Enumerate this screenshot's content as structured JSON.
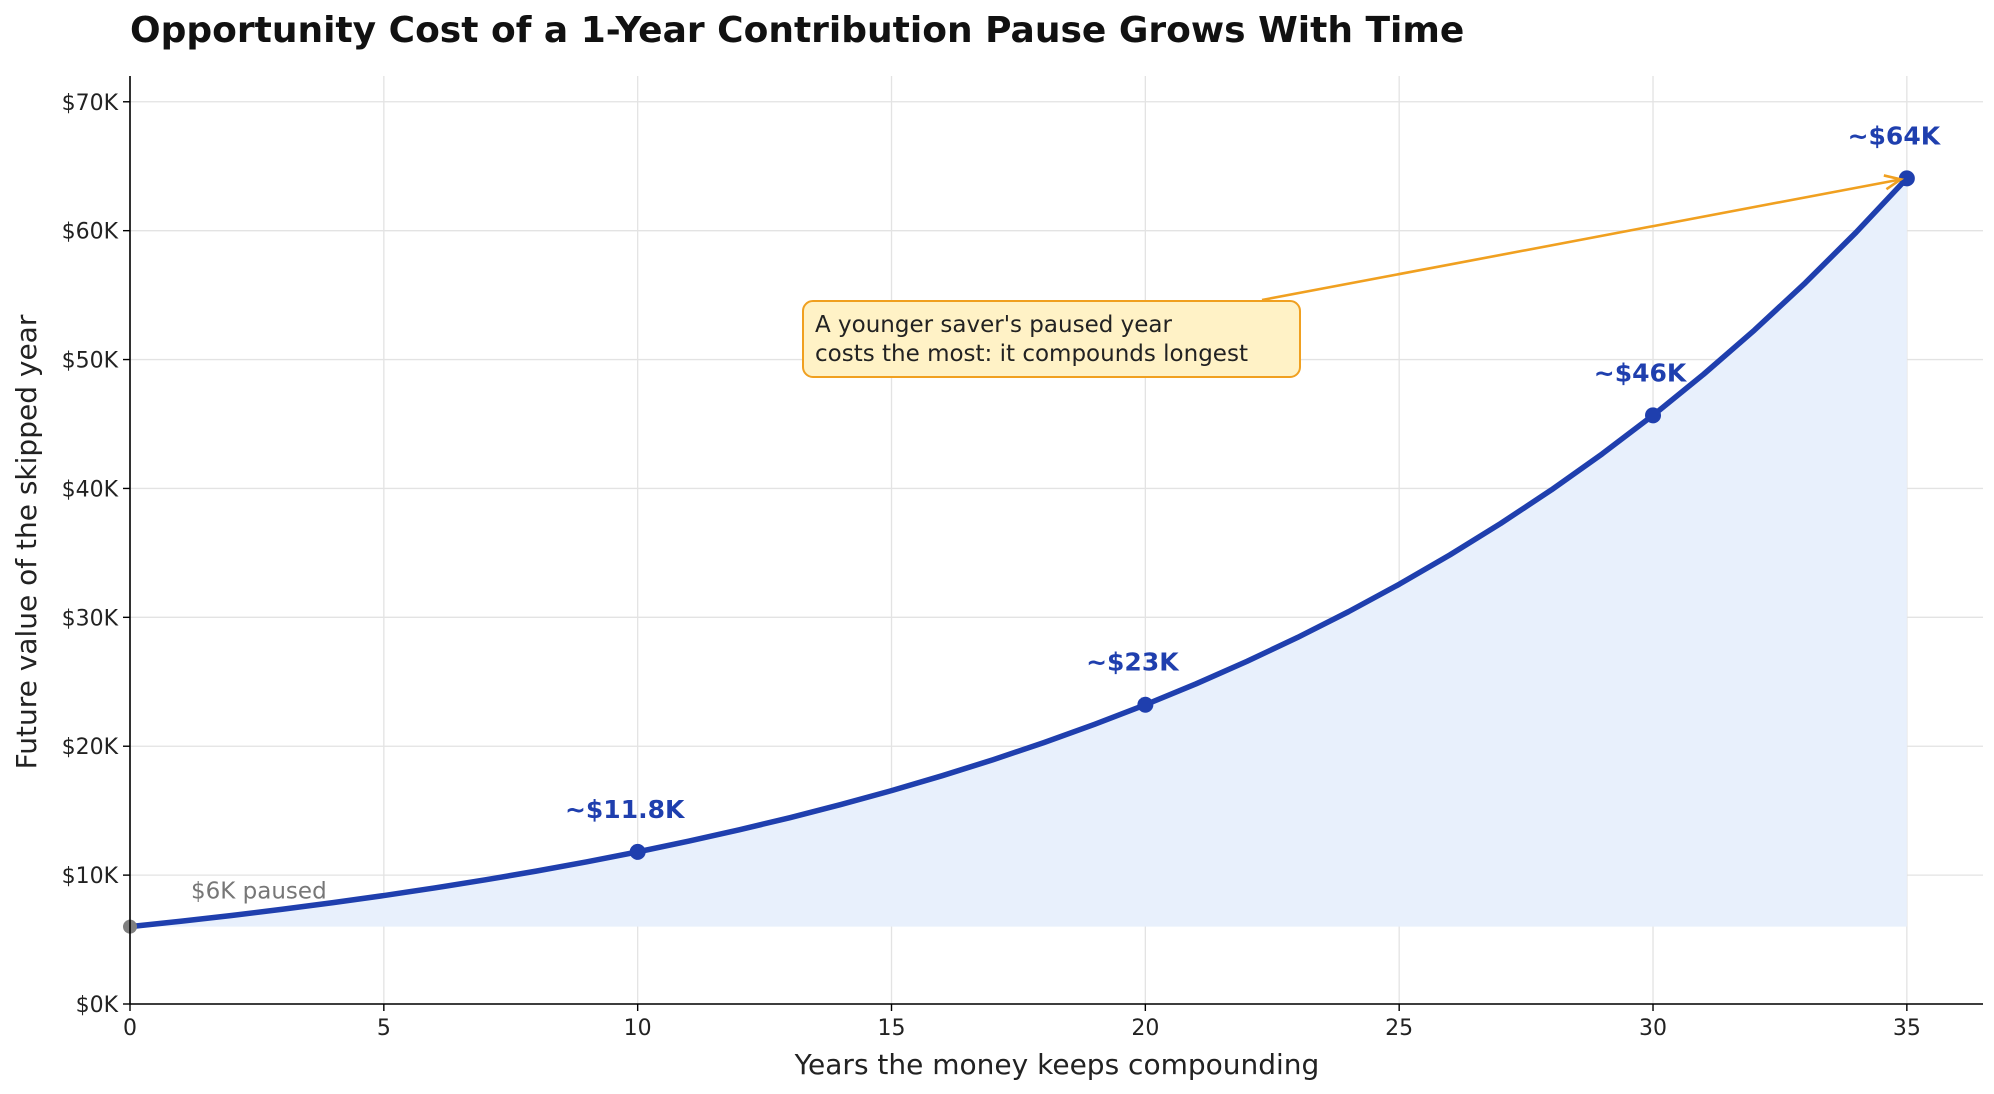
{
  "chart_data": {
    "type": "area",
    "title": "Opportunity Cost of a 1-Year Contribution Pause Grows With Time",
    "xlabel": "Years the money keeps compounding",
    "ylabel": "Future value of the skipped year",
    "xlim": [
      0,
      36.5
    ],
    "ylim": [
      0,
      72000
    ],
    "x_ticks": [
      0,
      5,
      10,
      15,
      20,
      25,
      30,
      35
    ],
    "x_tick_labels": [
      "0",
      "5",
      "10",
      "15",
      "20",
      "25",
      "30",
      "35"
    ],
    "y_ticks": [
      0,
      10000,
      20000,
      30000,
      40000,
      50000,
      60000,
      70000
    ],
    "y_tick_labels": [
      "$0K",
      "$10K",
      "$20K",
      "$30K",
      "$40K",
      "$50K",
      "$60K",
      "$70K"
    ],
    "grid": true,
    "series": [
      {
        "x": [
          0,
          1,
          2,
          3,
          4,
          5,
          6,
          7,
          8,
          9,
          10,
          11,
          12,
          13,
          14,
          15,
          16,
          17,
          18,
          19,
          20,
          21,
          22,
          23,
          24,
          25,
          26,
          27,
          28,
          29,
          30,
          31,
          32,
          33,
          34,
          35
        ],
        "values": [
          6000,
          6420,
          6869,
          7350,
          7865,
          8415,
          9004,
          9635,
          10309,
          11031,
          11803,
          12629,
          13513,
          14459,
          15471,
          16554,
          17713,
          18953,
          20280,
          21700,
          23218,
          24843,
          26583,
          28443,
          30434,
          32565,
          34844,
          37283,
          39893,
          42685,
          45673,
          48870,
          52291,
          55951,
          59868,
          64059
        ]
      }
    ],
    "markers": [
      {
        "x": 0,
        "y": 6000,
        "label": "$6K paused",
        "kind": "start"
      },
      {
        "x": 10,
        "y": 11803,
        "label": "~$11.8K",
        "kind": "highlight"
      },
      {
        "x": 20,
        "y": 23218,
        "label": "~$23K",
        "kind": "highlight"
      },
      {
        "x": 30,
        "y": 45673,
        "label": "~$46K",
        "kind": "highlight"
      },
      {
        "x": 35,
        "y": 64059,
        "label": "~$64K",
        "kind": "highlight"
      }
    ],
    "annotation": {
      "lines": [
        "A younger saver's paused year",
        "costs the most: it compounds longest"
      ],
      "target_x": 35,
      "target_y": 64059
    },
    "colors": {
      "line": "#1f3fae",
      "fill": "#e8f0fc",
      "start_marker": "#808080",
      "start_label": "#777777",
      "arrow": "#f0a020",
      "callout_bg": "#fff2c6",
      "callout_border": "#f0a020"
    }
  }
}
